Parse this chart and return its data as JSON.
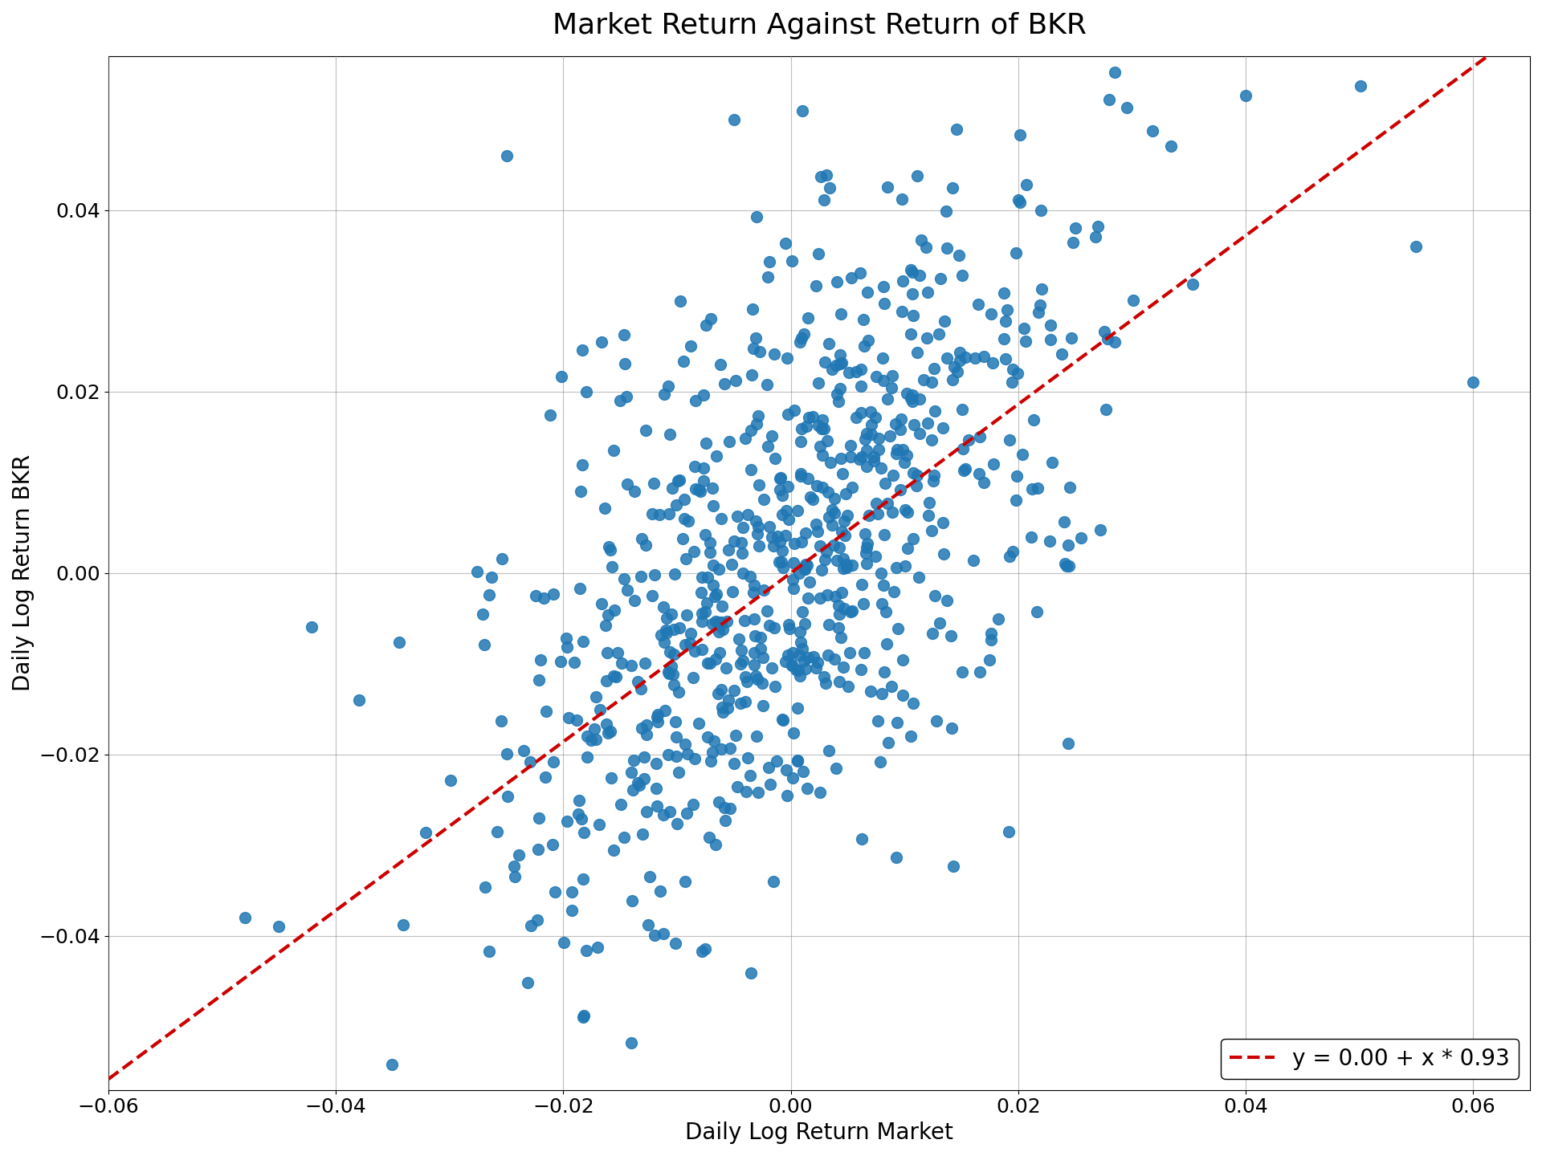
{
  "title": "Market Return Against Return of BKR",
  "xlabel": "Daily Log Return Market",
  "ylabel": "Daily Log Return BKR",
  "intercept": 0.0,
  "slope": 0.93,
  "legend_label": "y = 0.00 + x * 0.93",
  "scatter_color": "#1f77b4",
  "line_color": "#cc0000",
  "xlim": [
    -0.06,
    0.065
  ],
  "ylim": [
    -0.057,
    0.057
  ],
  "title_fontsize": 26,
  "label_fontsize": 20,
  "tick_fontsize": 18,
  "marker_size": 100,
  "alpha": 0.85,
  "n_points": 750,
  "seed": 42,
  "market_std": 0.013,
  "noise_std": 0.016
}
